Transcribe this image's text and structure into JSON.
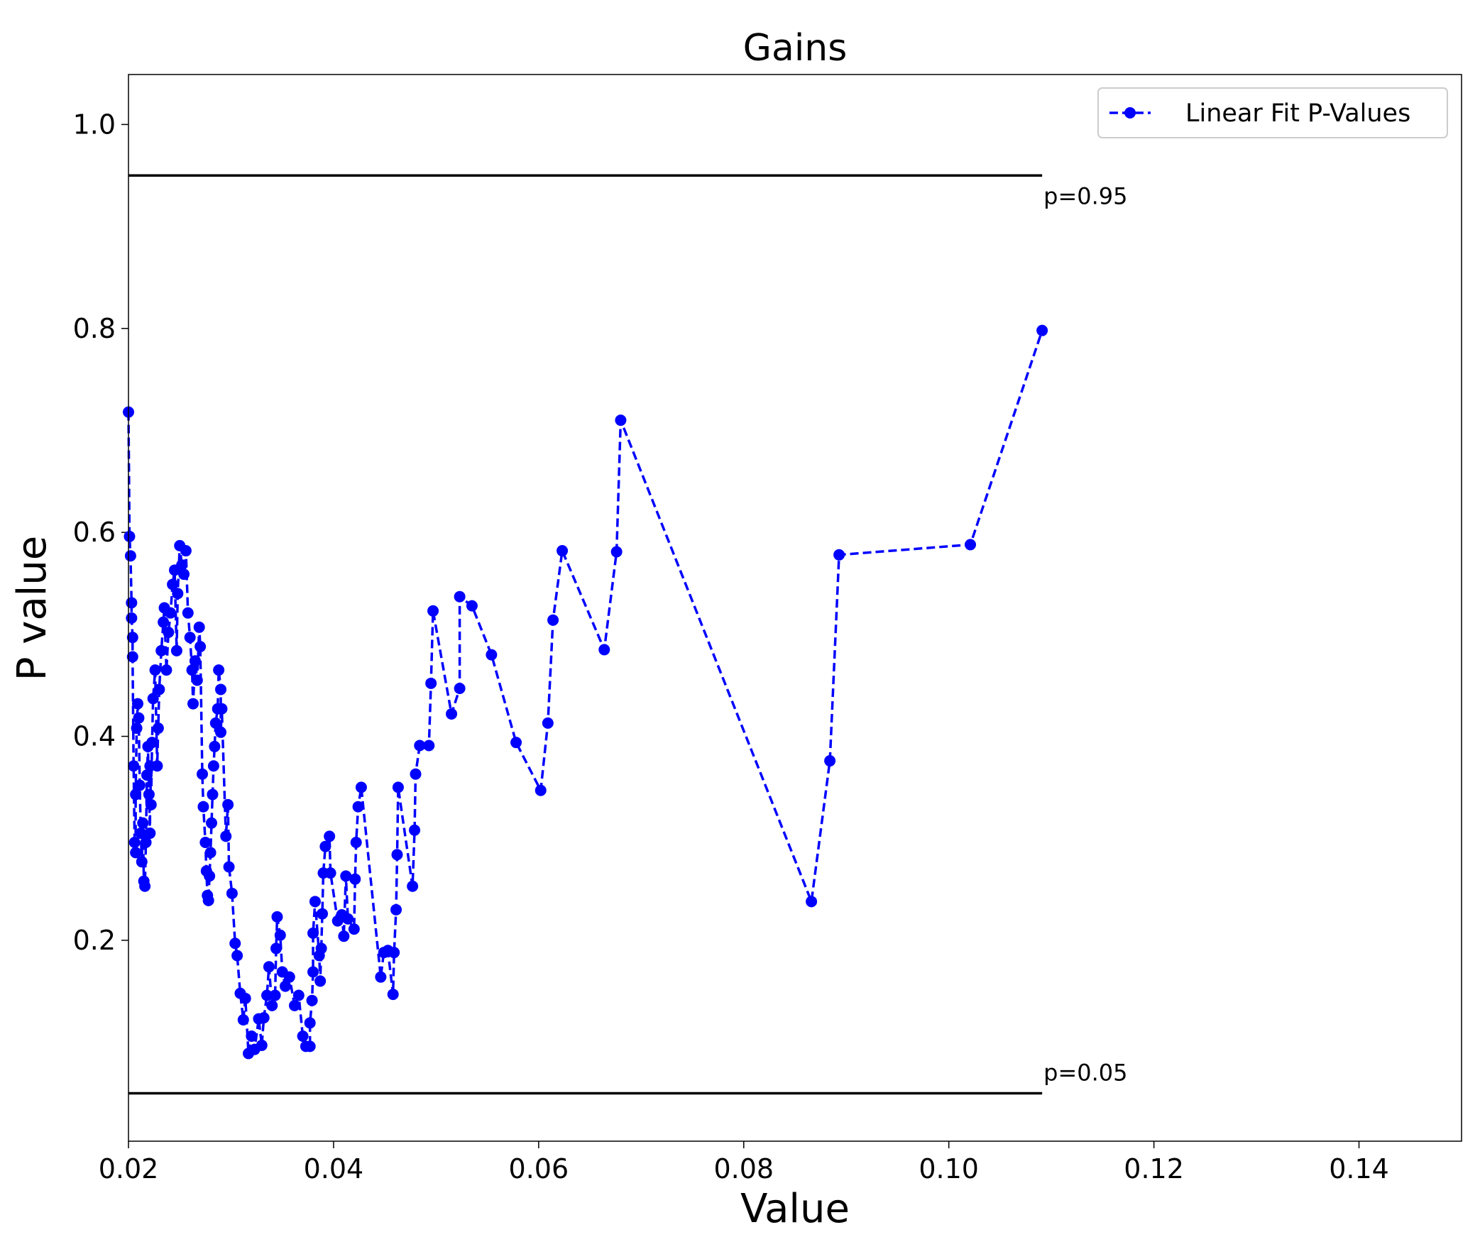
{
  "chart_data": {
    "type": "line",
    "title": "Gains",
    "xlabel": "Value",
    "ylabel": "P value",
    "xlim": [
      0.02,
      0.15
    ],
    "ylim": [
      0.003,
      1.049
    ],
    "xticks": [
      0.02,
      0.04,
      0.06,
      0.08,
      {
        "value": 0.1,
        "label": "0.10"
      },
      0.12,
      0.14
    ],
    "yticks": [
      0.2,
      0.4,
      0.6,
      0.8,
      {
        "value": 1,
        "label": "1.0"
      }
    ],
    "grid": false,
    "legend": "upper right",
    "series": [
      {
        "name": "Linear Fit P-Values",
        "color": "#0000ff",
        "linestyle": "dashed",
        "marker": "circle",
        "x": [
          0.02,
          0.0201,
          0.0202,
          0.0203,
          0.0203,
          0.0204,
          0.0204,
          0.0205,
          0.0206,
          0.0207,
          0.0207,
          0.0208,
          0.0209,
          0.021,
          0.0211,
          0.0212,
          0.0213,
          0.0214,
          0.0215,
          0.0216,
          0.0217,
          0.0218,
          0.0219,
          0.022,
          0.0221,
          0.0221,
          0.0222,
          0.0223,
          0.0224,
          0.0226,
          0.0228,
          0.0229,
          0.023,
          0.0232,
          0.0234,
          0.0235,
          0.0237,
          0.0239,
          0.0241,
          0.0243,
          0.0245,
          0.0247,
          0.0248,
          0.025,
          0.0252,
          0.0254,
          0.0256,
          0.0258,
          0.026,
          0.0262,
          0.0263,
          0.0265,
          0.0267,
          0.0269,
          0.027,
          0.0272,
          0.0273,
          0.0275,
          0.0276,
          0.0277,
          0.0278,
          0.0279,
          0.028,
          0.0281,
          0.0282,
          0.0283,
          0.0284,
          0.0285,
          0.0287,
          0.0288,
          0.029,
          0.029,
          0.0291,
          0.0295,
          0.0297,
          0.0298,
          0.0301,
          0.0304,
          0.0306,
          0.0309,
          0.0312,
          0.0314,
          0.0317,
          0.032,
          0.0323,
          0.0327,
          0.033,
          0.0332,
          0.0335,
          0.0337,
          0.034,
          0.0343,
          0.0344,
          0.0345,
          0.0348,
          0.035,
          0.0353,
          0.0357,
          0.0362,
          0.0366,
          0.037,
          0.0373,
          0.0377,
          0.0377,
          0.0379,
          0.038,
          0.038,
          0.0382,
          0.0386,
          0.0387,
          0.0388,
          0.0389,
          0.039,
          0.0392,
          0.0396,
          0.0397,
          0.0404,
          0.0408,
          0.041,
          0.0412,
          0.0414,
          0.042,
          0.0421,
          0.0422,
          0.0424,
          0.0427,
          0.0446,
          0.0449,
          0.0453,
          0.0458,
          0.0459,
          0.0461,
          0.0462,
          0.0463,
          0.0477,
          0.0479,
          0.048,
          0.0484,
          0.0493,
          0.0495,
          0.0497,
          0.0515,
          0.0523,
          0.0523,
          0.0535,
          0.0554,
          0.0578,
          0.0602,
          0.0609,
          0.0614,
          0.0623,
          0.0664,
          0.0676,
          0.068,
          0.0866,
          0.0884,
          0.0893,
          0.1021,
          0.1091
        ],
        "values": [
          0.718,
          0.596,
          0.577,
          0.531,
          0.516,
          0.497,
          0.478,
          0.371,
          0.296,
          0.286,
          0.343,
          0.408,
          0.432,
          0.418,
          0.352,
          0.305,
          0.277,
          0.315,
          0.258,
          0.253,
          0.296,
          0.362,
          0.39,
          0.343,
          0.305,
          0.371,
          0.333,
          0.394,
          0.437,
          0.465,
          0.371,
          0.408,
          0.446,
          0.484,
          0.512,
          0.526,
          0.465,
          0.502,
          0.521,
          0.549,
          0.563,
          0.484,
          0.54,
          0.587,
          0.568,
          0.559,
          0.582,
          0.521,
          0.497,
          0.465,
          0.432,
          0.474,
          0.455,
          0.507,
          0.488,
          0.363,
          0.331,
          0.296,
          0.268,
          0.244,
          0.239,
          0.263,
          0.286,
          0.315,
          0.343,
          0.371,
          0.39,
          0.413,
          0.427,
          0.465,
          0.446,
          0.404,
          0.427,
          0.302,
          0.333,
          0.272,
          0.246,
          0.197,
          0.185,
          0.148,
          0.122,
          0.143,
          0.089,
          0.106,
          0.093,
          0.123,
          0.097,
          0.124,
          0.146,
          0.174,
          0.136,
          0.146,
          0.192,
          0.223,
          0.205,
          0.169,
          0.155,
          0.164,
          0.136,
          0.146,
          0.106,
          0.096,
          0.096,
          0.119,
          0.141,
          0.169,
          0.207,
          0.238,
          0.185,
          0.16,
          0.192,
          0.226,
          0.266,
          0.292,
          0.302,
          0.266,
          0.219,
          0.225,
          0.204,
          0.263,
          0.221,
          0.211,
          0.26,
          0.296,
          0.331,
          0.35,
          0.164,
          0.188,
          0.19,
          0.147,
          0.188,
          0.23,
          0.284,
          0.35,
          0.253,
          0.308,
          0.363,
          0.391,
          0.391,
          0.452,
          0.523,
          0.422,
          0.447,
          0.537,
          0.528,
          0.48,
          0.394,
          0.347,
          0.413,
          0.514,
          0.582,
          0.485,
          0.581,
          0.71,
          0.238,
          0.376,
          0.578,
          0.588,
          0.798
        ]
      }
    ],
    "hlines": [
      {
        "y": 0.95,
        "xmin": 0.02,
        "xmax": 0.1091,
        "label": "p=0.95",
        "color": "#000000"
      },
      {
        "y": 0.05,
        "xmin": 0.02,
        "xmax": 0.1091,
        "label": "p=0.05",
        "color": "#000000"
      }
    ]
  }
}
